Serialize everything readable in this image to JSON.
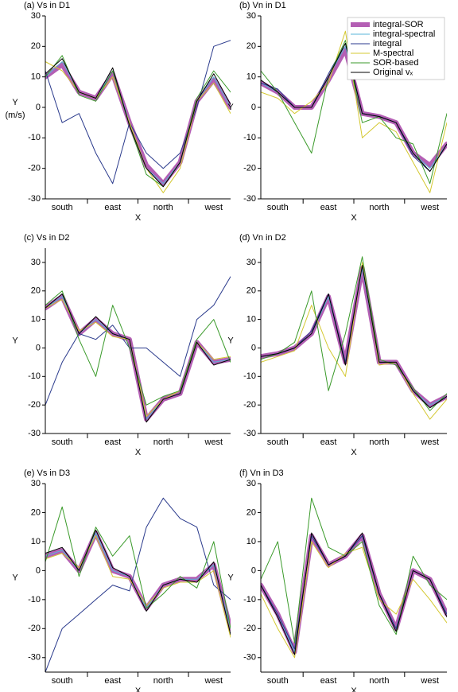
{
  "chart_data": [
    {
      "type": "line",
      "title": "(a) Vs in D1",
      "y_label": "Y",
      "y_unit": "(m/s)",
      "x_label": "X",
      "categories": [
        null,
        "south",
        null,
        null,
        "east",
        null,
        null,
        "north",
        null,
        null,
        "west",
        null
      ],
      "ylim": [
        -30,
        30
      ],
      "yticks": [
        -30,
        -20,
        -10,
        0,
        10,
        20,
        30
      ],
      "series": [
        {
          "color": "#b45fb4",
          "line_width": 6,
          "values": [
            10,
            14,
            5,
            3,
            11,
            -5,
            -19,
            -25,
            -18,
            2,
            9,
            0
          ]
        },
        {
          "color": "#5ab4d8",
          "line_width": 1,
          "values": [
            10,
            15,
            5,
            3,
            12,
            -5,
            -20,
            -25,
            -18,
            2,
            10,
            0
          ]
        },
        {
          "color": "#2a3a8c",
          "line_width": 1,
          "values": [
            12,
            -5,
            -2,
            -15,
            -25,
            -5,
            -15,
            -20,
            -15,
            0,
            20,
            22
          ]
        },
        {
          "color": "#d4c830",
          "line_width": 1,
          "values": [
            15,
            12,
            5,
            3,
            10,
            -5,
            -20,
            -28,
            -20,
            2,
            8,
            -2
          ]
        },
        {
          "color": "#3a9a2a",
          "line_width": 1,
          "values": [
            10,
            17,
            4,
            2,
            12,
            -6,
            -22,
            -26,
            -18,
            3,
            12,
            5
          ]
        },
        {
          "color": "#000000",
          "line_width": 1,
          "values": [
            11,
            16,
            5,
            3,
            13,
            -6,
            -20,
            -26,
            -18,
            2,
            11,
            1
          ]
        }
      ]
    },
    {
      "type": "line",
      "title": "(b) Vn in D1",
      "y_label": "Y",
      "x_label": "X",
      "legend": "upper right",
      "categories": [
        null,
        "south",
        null,
        null,
        "east",
        null,
        null,
        "north",
        null,
        null,
        "west",
        null
      ],
      "ylim": [
        -30,
        30
      ],
      "yticks": [
        -30,
        -20,
        -10,
        0,
        10,
        20,
        30
      ],
      "series": [
        {
          "name": "integral-SOR",
          "color": "#b45fb4",
          "line_width": 6,
          "values": [
            8,
            5,
            0,
            0,
            9,
            19,
            -2,
            -3,
            -5,
            -15,
            -19,
            -12
          ]
        },
        {
          "name": "integral-spectral",
          "color": "#5ab4d8",
          "line_width": 1,
          "values": [
            8,
            5,
            0,
            0,
            10,
            20,
            -2,
            -3,
            -5,
            -15,
            -20,
            -12
          ]
        },
        {
          "name": "integral",
          "color": "#2a3a8c",
          "line_width": 1,
          "values": [
            8,
            6,
            0,
            0,
            11,
            21,
            -2,
            -3,
            -5,
            -16,
            -21,
            -12
          ]
        },
        {
          "name": "M-spectral",
          "color": "#d4c830",
          "line_width": 1,
          "values": [
            5,
            3,
            -2,
            2,
            8,
            25,
            -10,
            -5,
            -8,
            -18,
            -28,
            -5
          ]
        },
        {
          "name": "SOR-based",
          "color": "#3a9a2a",
          "line_width": 1,
          "values": [
            12,
            5,
            -5,
            -15,
            10,
            22,
            -5,
            -3,
            -10,
            -12,
            -25,
            -2
          ]
        },
        {
          "name": "Original vₓ",
          "color": "#000000",
          "line_width": 1,
          "values": [
            9,
            5,
            0,
            0,
            10,
            21,
            -2,
            -3,
            -5,
            -15,
            -21,
            -12
          ]
        }
      ]
    },
    {
      "type": "line",
      "title": "(c) Vs in D2",
      "y_label": "Y",
      "x_label": "X",
      "categories": [
        null,
        "south",
        null,
        null,
        "east",
        null,
        null,
        "north",
        null,
        null,
        "west",
        null
      ],
      "ylim": [
        -30,
        35
      ],
      "yticks": [
        -30,
        -20,
        -10,
        0,
        10,
        20,
        30
      ],
      "series": [
        {
          "color": "#b45fb4",
          "line_width": 6,
          "values": [
            14,
            18,
            5,
            10,
            5,
            3,
            -25,
            -18,
            -16,
            2,
            -5,
            -4
          ]
        },
        {
          "color": "#5ab4d8",
          "line_width": 1,
          "values": [
            14,
            18,
            5,
            10,
            5,
            3,
            -25,
            -18,
            -16,
            2,
            -5,
            -4
          ]
        },
        {
          "color": "#2a3a8c",
          "line_width": 1,
          "values": [
            -20,
            -5,
            5,
            3,
            8,
            0,
            0,
            -5,
            -10,
            10,
            15,
            25
          ]
        },
        {
          "color": "#d4c830",
          "line_width": 1,
          "values": [
            14,
            17,
            6,
            9,
            4,
            3,
            -24,
            -18,
            -15,
            2,
            -4,
            -3
          ]
        },
        {
          "color": "#3a9a2a",
          "line_width": 1,
          "values": [
            15,
            20,
            3,
            -10,
            15,
            0,
            -20,
            -17,
            -15,
            3,
            10,
            -5
          ]
        },
        {
          "color": "#000000",
          "line_width": 1,
          "values": [
            14,
            19,
            5,
            11,
            5,
            3,
            -26,
            -18,
            -16,
            2,
            -6,
            -4
          ]
        }
      ]
    },
    {
      "type": "line",
      "title": "(d) Vn in D2",
      "y_label": "Y",
      "x_label": "X",
      "categories": [
        null,
        "south",
        null,
        null,
        "east",
        null,
        null,
        "north",
        null,
        null,
        "west",
        null
      ],
      "ylim": [
        -30,
        35
      ],
      "yticks": [
        -30,
        -20,
        -10,
        0,
        10,
        20,
        30
      ],
      "series": [
        {
          "color": "#b45fb4",
          "line_width": 6,
          "values": [
            -3,
            -2,
            0,
            5,
            18,
            -5,
            28,
            -5,
            -5,
            -15,
            -20,
            -17
          ]
        },
        {
          "color": "#5ab4d8",
          "line_width": 1,
          "values": [
            -3,
            -2,
            0,
            5,
            18,
            -5,
            28,
            -5,
            -5,
            -15,
            -20,
            -17
          ]
        },
        {
          "color": "#2a3a8c",
          "line_width": 1,
          "values": [
            -3,
            -2,
            0,
            6,
            19,
            -5,
            29,
            -5,
            -5,
            -15,
            -21,
            -17
          ]
        },
        {
          "color": "#d4c830",
          "line_width": 1,
          "values": [
            -5,
            -3,
            -1,
            15,
            0,
            -10,
            30,
            -6,
            -5,
            -16,
            -25,
            -18
          ]
        },
        {
          "color": "#3a9a2a",
          "line_width": 1,
          "values": [
            -4,
            -2,
            2,
            20,
            -15,
            5,
            32,
            -4,
            -6,
            -14,
            -22,
            -16
          ]
        },
        {
          "color": "#000000",
          "line_width": 1,
          "values": [
            -3,
            -2,
            0,
            5,
            19,
            -6,
            29,
            -5,
            -5,
            -15,
            -21,
            -17
          ]
        }
      ]
    },
    {
      "type": "line",
      "title": "(e) Vs in D3",
      "y_label": "Y",
      "x_label": "X",
      "categories": [
        null,
        "south",
        null,
        null,
        "east",
        null,
        null,
        "north",
        null,
        null,
        "west",
        null
      ],
      "ylim": [
        -35,
        30
      ],
      "yticks": [
        -30,
        -20,
        -10,
        0,
        10,
        20,
        30
      ],
      "series": [
        {
          "color": "#b45fb4",
          "line_width": 6,
          "values": [
            5,
            7,
            0,
            13,
            0,
            -2,
            -13,
            -5,
            -3,
            -3,
            2,
            -20
          ]
        },
        {
          "color": "#5ab4d8",
          "line_width": 1,
          "values": [
            5,
            7,
            0,
            13,
            0,
            -2,
            -13,
            -5,
            -3,
            -3,
            2,
            -20
          ]
        },
        {
          "color": "#2a3a8c",
          "line_width": 1,
          "values": [
            -35,
            -20,
            -15,
            -10,
            -5,
            -7,
            15,
            25,
            18,
            15,
            -5,
            -10
          ]
        },
        {
          "color": "#d4c830",
          "line_width": 1,
          "values": [
            4,
            6,
            1,
            12,
            -2,
            -3,
            -12,
            -6,
            -4,
            -4,
            0,
            -23
          ]
        },
        {
          "color": "#3a9a2a",
          "line_width": 1,
          "values": [
            3,
            22,
            -2,
            15,
            5,
            12,
            -13,
            -8,
            -2,
            -6,
            10,
            -20
          ]
        },
        {
          "color": "#000000",
          "line_width": 1,
          "values": [
            6,
            8,
            0,
            14,
            1,
            -2,
            -14,
            -5,
            -3,
            -4,
            3,
            -22
          ]
        }
      ]
    },
    {
      "type": "line",
      "title": "(f) Vn in D3",
      "y_label": "Y",
      "x_label": "X",
      "categories": [
        null,
        "south",
        null,
        null,
        "east",
        null,
        null,
        "north",
        null,
        null,
        "west",
        null
      ],
      "ylim": [
        -35,
        30
      ],
      "yticks": [
        -30,
        -20,
        -10,
        0,
        10,
        20,
        30
      ],
      "series": [
        {
          "color": "#b45fb4",
          "line_width": 6,
          "values": [
            -5,
            -15,
            -28,
            12,
            2,
            5,
            12,
            -8,
            -20,
            0,
            -3,
            -15
          ]
        },
        {
          "color": "#5ab4d8",
          "line_width": 1,
          "values": [
            -5,
            -15,
            -28,
            12,
            2,
            5,
            12,
            -8,
            -20,
            0,
            -3,
            -15
          ]
        },
        {
          "color": "#2a3a8c",
          "line_width": 1,
          "values": [
            -5,
            -15,
            -27,
            12,
            2,
            5,
            12,
            -8,
            -20,
            0,
            -3,
            -15
          ]
        },
        {
          "color": "#d4c830",
          "line_width": 1,
          "values": [
            -8,
            -20,
            -30,
            10,
            1,
            6,
            8,
            -10,
            -15,
            -3,
            -10,
            -18
          ]
        },
        {
          "color": "#3a9a2a",
          "line_width": 1,
          "values": [
            -3,
            10,
            -25,
            25,
            8,
            5,
            10,
            -12,
            -22,
            5,
            -5,
            -10
          ]
        },
        {
          "color": "#000000",
          "line_width": 1,
          "values": [
            -5,
            -16,
            -29,
            13,
            2,
            5,
            13,
            -8,
            -21,
            0,
            -3,
            -16
          ]
        }
      ]
    }
  ]
}
